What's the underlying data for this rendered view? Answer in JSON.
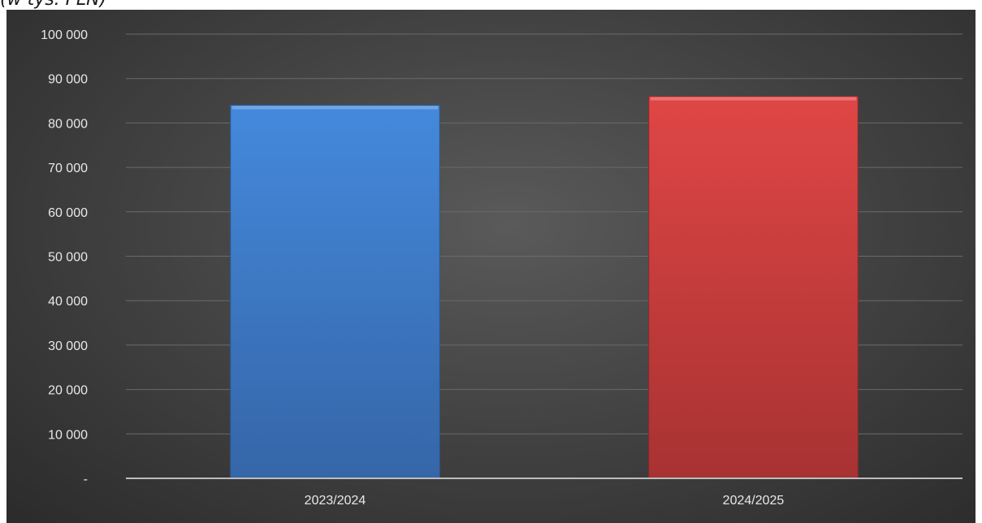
{
  "caption": "(w tys. PLN)",
  "colors": {
    "series_1": "#3f80d0",
    "series_2": "#d84242",
    "grid": "#6a6a6a",
    "axis": "#bdbdbd",
    "text": "#e8e8e8"
  },
  "chart_data": {
    "type": "bar",
    "title": "",
    "xlabel": "",
    "ylabel": "",
    "categories": [
      "2023/2024",
      "2024/2025"
    ],
    "values": [
      84000,
      86000
    ],
    "ylim": [
      0,
      100000
    ],
    "ytick_values": [
      0,
      10000,
      20000,
      30000,
      40000,
      50000,
      60000,
      70000,
      80000,
      90000,
      100000
    ],
    "ytick_labels": [
      "-",
      "10 000",
      "20 000",
      "30 000",
      "40 000",
      "50 000",
      "60 000",
      "70 000",
      "80 000",
      "90 000",
      "100 000"
    ],
    "grid": true,
    "legend": "none"
  }
}
